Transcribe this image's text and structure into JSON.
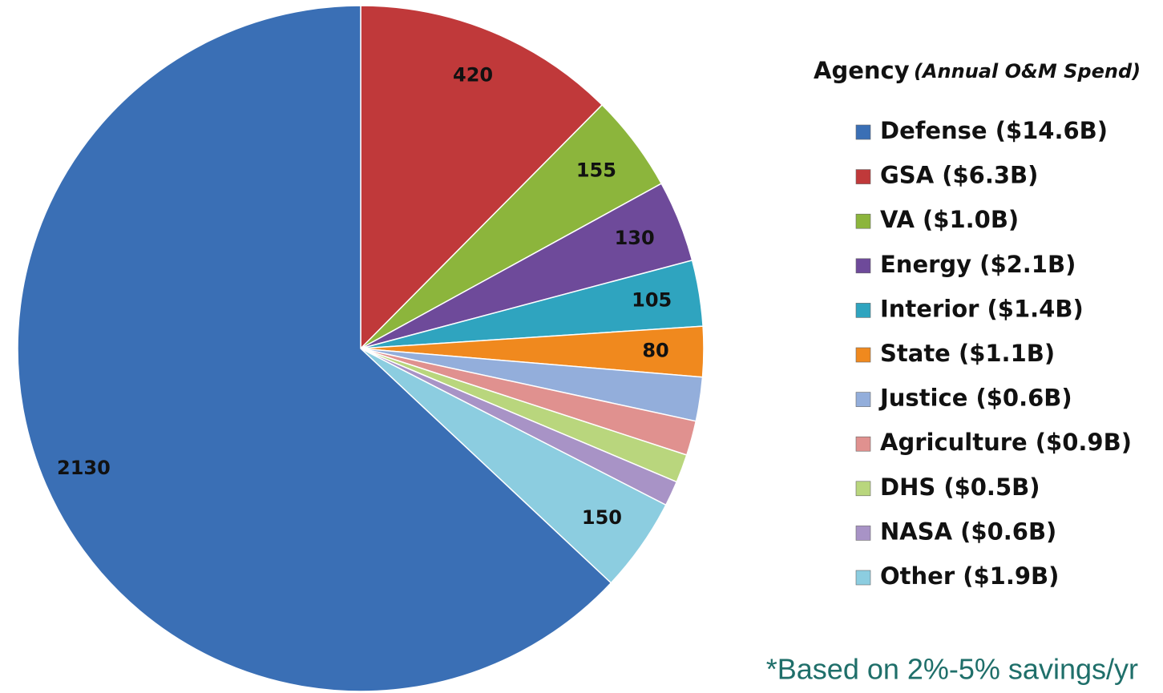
{
  "chart_data": {
    "type": "pie",
    "legend_title": "Agency",
    "legend_subtitle": "(Annual O&M Spend)",
    "footnote": "*Based on 2%-5% savings/yr",
    "categories": [
      "Defense ($14.6B)",
      "GSA ($6.3B)",
      "VA ($1.0B)",
      "Energy ($2.1B)",
      "Interior ($1.4B)",
      "State ($1.1B)",
      "Justice ($0.6B)",
      "Agriculture ($0.9B)",
      "DHS ($0.5B)",
      "NASA ($0.6B)",
      "Other ($1.9B)"
    ],
    "values": [
      2130,
      420,
      155,
      130,
      105,
      80,
      70,
      55,
      45,
      40,
      150
    ],
    "data_labels": [
      true,
      true,
      true,
      true,
      true,
      true,
      false,
      false,
      false,
      false,
      true
    ],
    "colors": [
      "#3a6fb5",
      "#c0393a",
      "#8cb53c",
      "#6e4a9a",
      "#2fa4bf",
      "#f0891e",
      "#93aedb",
      "#e0918f",
      "#b9d67d",
      "#a893c6",
      "#8ccde0"
    ],
    "legend": "right"
  }
}
